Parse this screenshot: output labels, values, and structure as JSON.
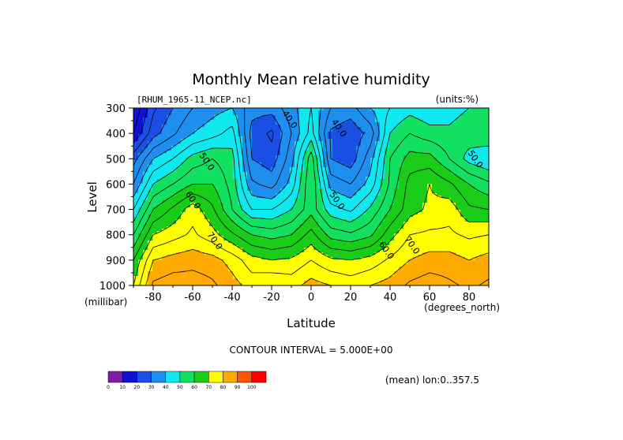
{
  "chart_data": {
    "type": "heatmap",
    "subtype": "filled-contour",
    "title": "Monthly Mean relative humidity",
    "file_label": "[RHUM_1965-11_NCEP.nc]",
    "units_label": "(units:%)",
    "xlabel": "Latitude",
    "x_units": "(degrees_north)",
    "ylabel": "Level",
    "y_units": "(millibar)",
    "xlim": [
      -90,
      90
    ],
    "ylim": [
      1000,
      300
    ],
    "x_ticks": [
      -80,
      -60,
      -40,
      -20,
      0,
      20,
      40,
      60,
      80
    ],
    "y_ticks": [
      300,
      400,
      500,
      600,
      700,
      800,
      900,
      1000
    ],
    "contour_interval_text": "CONTOUR INTERVAL = 5.000E+00",
    "contour_interval": 5,
    "footer": "(mean) lon:0..357.5",
    "colorbar": {
      "levels": [
        0,
        10,
        20,
        30,
        40,
        50,
        60,
        70,
        80,
        90,
        100
      ],
      "colors": [
        "#7a1fa2",
        "#1010d8",
        "#1a4fe6",
        "#1e8fef",
        "#10e8ef",
        "#12e060",
        "#18cc18",
        "#ffff00",
        "#ffaa00",
        "#ff5500",
        "#ff0000"
      ]
    },
    "contour_labels": [
      {
        "text": "40.0",
        "lat": -12,
        "lev": 352
      },
      {
        "text": "40.0",
        "lat": 13,
        "lev": 385
      },
      {
        "text": "50.0",
        "lat": -54,
        "lev": 518
      },
      {
        "text": "50.0",
        "lat": 12,
        "lev": 672
      },
      {
        "text": "50.0",
        "lat": 82,
        "lev": 508
      },
      {
        "text": "60.0",
        "lat": -61,
        "lev": 670
      },
      {
        "text": "60.0",
        "lat": 37,
        "lev": 868
      },
      {
        "text": "70.0",
        "lat": -50,
        "lev": 830
      },
      {
        "text": "70.0",
        "lat": 50,
        "lev": 848
      }
    ],
    "profiles": {
      "lat": [
        -90,
        -80,
        -70,
        -60,
        -50,
        -40,
        -30,
        -20,
        -10,
        0,
        10,
        20,
        30,
        40,
        50,
        60,
        70,
        80,
        90
      ],
      "lev": [
        300,
        400,
        500,
        600,
        700,
        800,
        900,
        1000
      ],
      "rh": [
        [
          10,
          24,
          30,
          35,
          38,
          40,
          32,
          32,
          38,
          45,
          35,
          33,
          40,
          45,
          48,
          46,
          48,
          50,
          52
        ],
        [
          15,
          28,
          34,
          40,
          43,
          47,
          28,
          24,
          35,
          47,
          29,
          26,
          32,
          50,
          55,
          52,
          51,
          53,
          55
        ],
        [
          28,
          40,
          45,
          52,
          55,
          52,
          30,
          27,
          38,
          58,
          30,
          27,
          38,
          55,
          62,
          62,
          55,
          48,
          45
        ],
        [
          35,
          50,
          55,
          60,
          60,
          53,
          36,
          33,
          42,
          60,
          38,
          35,
          42,
          56,
          67,
          70,
          66,
          60,
          56
        ],
        [
          45,
          60,
          66,
          73,
          66,
          55,
          45,
          45,
          50,
          58,
          47,
          44,
          51,
          60,
          68,
          71,
          73,
          66,
          65
        ],
        [
          55,
          70,
          73,
          76,
          72,
          66,
          60,
          58,
          60,
          67,
          58,
          56,
          59,
          68,
          75,
          76,
          76,
          74,
          75
        ],
        [
          65,
          80,
          82,
          83,
          82,
          78,
          72,
          70,
          71,
          75,
          71,
          70,
          72,
          76,
          80,
          82,
          82,
          80,
          82
        ],
        [
          70,
          86,
          88,
          88,
          86,
          82,
          78,
          80,
          78,
          82,
          80,
          78,
          80,
          82,
          86,
          88,
          86,
          84,
          86
        ]
      ]
    }
  }
}
